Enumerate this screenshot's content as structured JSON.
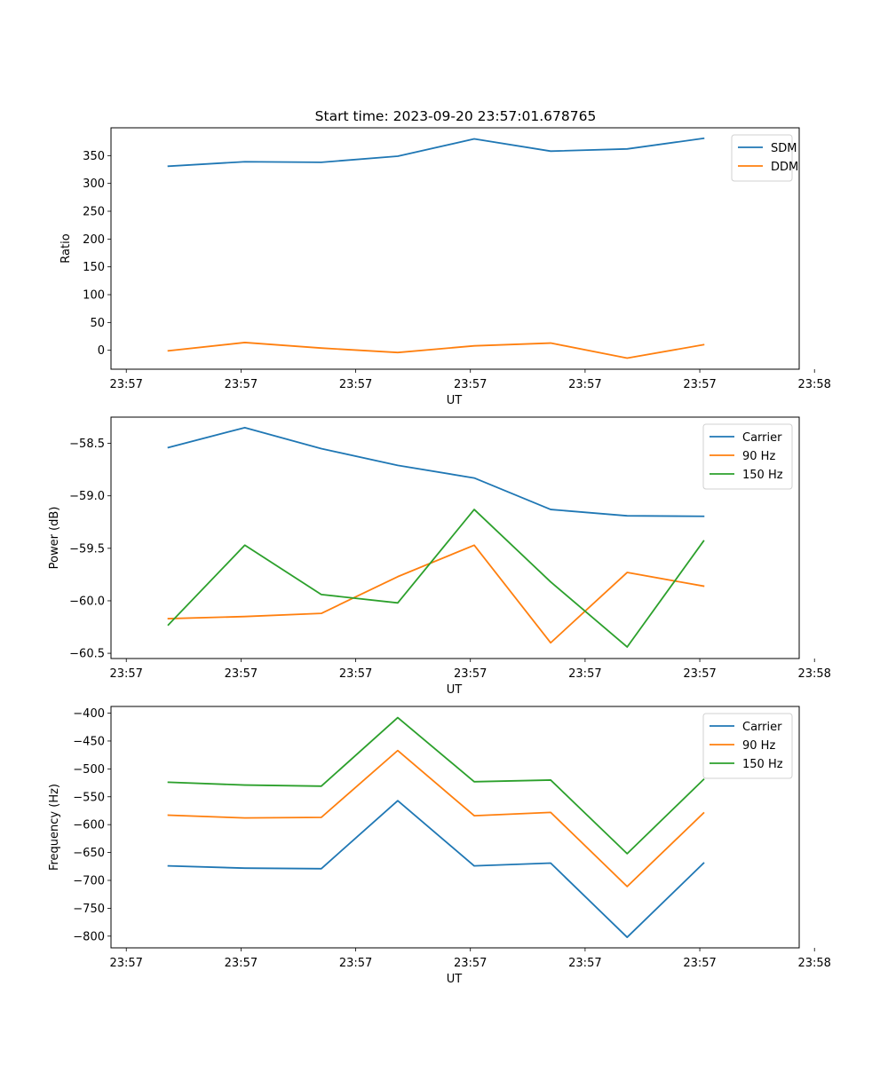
{
  "figure": {
    "title": "Start time: 2023-09-20 23:57:01.678765"
  },
  "chart_data": [
    {
      "type": "line",
      "ylabel": "Ratio",
      "xlabel": "UT",
      "x": [
        1,
        2,
        3,
        4,
        5,
        6,
        7,
        8
      ],
      "xlim": [
        0.25,
        9.25
      ],
      "xticks": [
        0.45,
        1.95,
        3.45,
        4.95,
        6.45,
        7.95,
        9.45
      ],
      "xtick_labels": [
        "23:57",
        "23:57",
        "23:57",
        "23:57",
        "23:57",
        "23:57",
        "23:58"
      ],
      "ylim": [
        -34,
        400
      ],
      "yticks": [
        0,
        50,
        100,
        150,
        200,
        250,
        300,
        350
      ],
      "ytick_labels": [
        "0",
        "50",
        "100",
        "150",
        "200",
        "250",
        "300",
        "350"
      ],
      "legend_position": "top-right",
      "series": [
        {
          "name": "SDM",
          "color": "#1f77b4",
          "values": [
            331,
            339,
            338,
            349,
            380,
            358,
            362,
            381
          ]
        },
        {
          "name": "DDM",
          "color": "#ff7f0e",
          "values": [
            -1,
            14,
            4,
            -4,
            8,
            13,
            -14,
            10
          ]
        }
      ]
    },
    {
      "type": "line",
      "ylabel": "Power (dB)",
      "xlabel": "UT",
      "x": [
        1,
        2,
        3,
        4,
        5,
        6,
        7,
        8
      ],
      "xlim": [
        0.25,
        9.25
      ],
      "xticks": [
        0.45,
        1.95,
        3.45,
        4.95,
        6.45,
        7.95,
        9.45
      ],
      "xtick_labels": [
        "23:57",
        "23:57",
        "23:57",
        "23:57",
        "23:57",
        "23:57",
        "23:58"
      ],
      "ylim": [
        -60.55,
        -58.25
      ],
      "yticks": [
        -58.5,
        -59.0,
        -59.5,
        -60.0,
        -60.5
      ],
      "ytick_labels": [
        "−58.5",
        "−59.0",
        "−59.5",
        "−60.0",
        "−60.5"
      ],
      "legend_position": "top-right",
      "series": [
        {
          "name": "Carrier",
          "color": "#1f77b4",
          "values": [
            -58.54,
            -58.35,
            -58.55,
            -58.71,
            -58.83,
            -59.13,
            -59.19,
            -59.195
          ]
        },
        {
          "name": "90 Hz",
          "color": "#ff7f0e",
          "values": [
            -60.17,
            -60.15,
            -60.12,
            -59.77,
            -59.47,
            -60.4,
            -59.73,
            -59.86
          ]
        },
        {
          "name": "150 Hz",
          "color": "#2ca02c",
          "values": [
            -60.23,
            -59.47,
            -59.94,
            -60.02,
            -59.13,
            -59.82,
            -60.44,
            -59.43
          ]
        }
      ]
    },
    {
      "type": "line",
      "ylabel": "Frequency (Hz)",
      "xlabel": "UT",
      "x": [
        1,
        2,
        3,
        4,
        5,
        6,
        7,
        8
      ],
      "xlim": [
        0.25,
        9.25
      ],
      "xticks": [
        0.45,
        1.95,
        3.45,
        4.95,
        6.45,
        7.95,
        9.45
      ],
      "xtick_labels": [
        "23:57",
        "23:57",
        "23:57",
        "23:57",
        "23:57",
        "23:57",
        "23:58"
      ],
      "ylim": [
        -821,
        -388
      ],
      "yticks": [
        -400,
        -450,
        -500,
        -550,
        -600,
        -650,
        -700,
        -750,
        -800
      ],
      "ytick_labels": [
        "−400",
        "−450",
        "−500",
        "−550",
        "−600",
        "−650",
        "−700",
        "−750",
        "−800"
      ],
      "legend_position": "top-right",
      "series": [
        {
          "name": "Carrier",
          "color": "#1f77b4",
          "values": [
            -674,
            -678,
            -679,
            -557,
            -674,
            -669,
            -802,
            -669
          ]
        },
        {
          "name": "90 Hz",
          "color": "#ff7f0e",
          "values": [
            -583,
            -588,
            -587,
            -467,
            -584,
            -578,
            -711,
            -579
          ]
        },
        {
          "name": "150 Hz",
          "color": "#2ca02c",
          "values": [
            -524,
            -529,
            -531,
            -408,
            -523,
            -520,
            -652,
            -519
          ]
        }
      ]
    }
  ]
}
